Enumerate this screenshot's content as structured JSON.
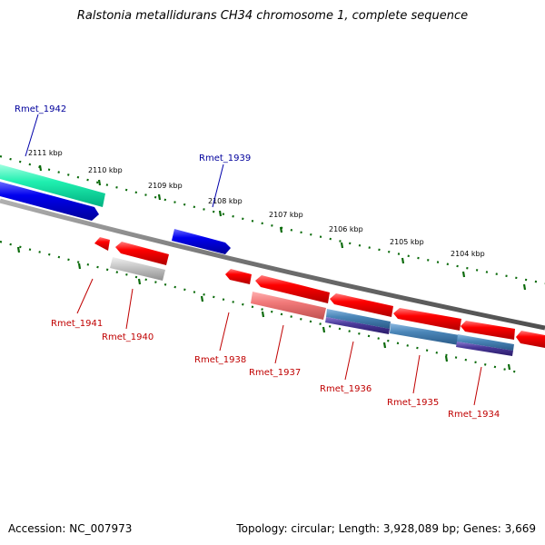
{
  "title": "Ralstonia metallidurans CH34 chromosome 1, complete sequence",
  "accession": "Accession: NC_007973",
  "summary": "Topology: circular; Length: 3,928,089 bp; Genes: 3,669",
  "ticks": [
    "2111 kbp",
    "2110 kbp",
    "2109 kbp",
    "2108 kbp",
    "2107 kbp",
    "2106 kbp",
    "2105 kbp",
    "2104 kbp"
  ],
  "genes": {
    "forward": [
      "Rmet_1942",
      "Rmet_1939"
    ],
    "reverse": [
      "Rmet_1941",
      "Rmet_1940",
      "Rmet_1938",
      "Rmet_1937",
      "Rmet_1936",
      "Rmet_1935",
      "Rmet_1934"
    ]
  },
  "colors": {
    "forward_label": "#00009c",
    "reverse_label": "#c00000",
    "cds_red": "#ff0000",
    "gene_blue": "#0000e6",
    "teal": "#00e0a0",
    "steel": "#4a86b8",
    "grey": "#b8b8b8",
    "tick_green": "#0a6a0a",
    "backbone": "#7a7a7a"
  }
}
